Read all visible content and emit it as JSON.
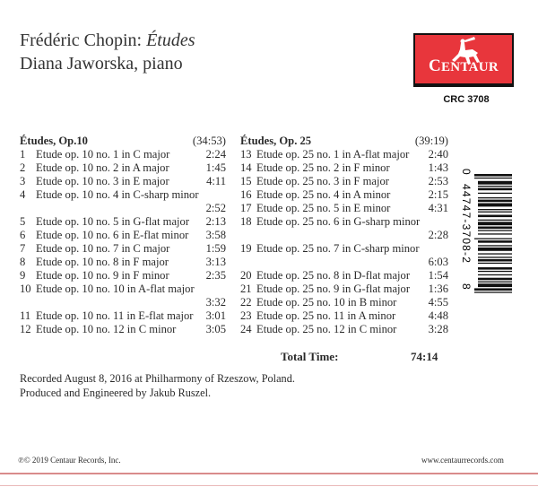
{
  "header": {
    "composer": "Frédéric Chopin:",
    "work": "Études",
    "performer": "Diana Jaworska, piano"
  },
  "label": {
    "logo_text": "CENTAUR",
    "catalog": "CRC 3708",
    "brand_color": "#e8363c"
  },
  "sections": [
    {
      "heading": "Études, Op.10",
      "duration": "(34:53)",
      "tracks": [
        {
          "num": "1",
          "title": "Etude op. 10 no. 1 in C major",
          "time": "2:24"
        },
        {
          "num": "2",
          "title": "Etude op. 10 no. 2 in A major",
          "time": "1:45"
        },
        {
          "num": "3",
          "title": "Etude op. 10 no. 3 in E major",
          "time": "4:11"
        },
        {
          "num": "4",
          "title": "Etude op. 10 no. 4 in C-sharp minor",
          "time": "2:52"
        },
        {
          "num": "5",
          "title": "Etude op. 10 no. 5 in G-flat major",
          "time": "2:13"
        },
        {
          "num": "6",
          "title": "Etude op. 10 no. 6 in E-flat minor",
          "time": "3:58"
        },
        {
          "num": "7",
          "title": "Etude op. 10 no. 7 in C major",
          "time": "1:59"
        },
        {
          "num": "8",
          "title": "Etude op. 10 no. 8 in F major",
          "time": "3:13"
        },
        {
          "num": "9",
          "title": "Etude op. 10 no. 9 in F minor",
          "time": "2:35"
        },
        {
          "num": "10",
          "title": "Etude op. 10 no. 10 in A-flat major",
          "time": "3:32"
        },
        {
          "num": "11",
          "title": "Etude op. 10 no. 11 in E-flat major",
          "time": "3:01"
        },
        {
          "num": "12",
          "title": "Etude op. 10 no. 12 in C minor",
          "time": "3:05"
        }
      ]
    },
    {
      "heading": "Études, Op. 25",
      "duration": "(39:19)",
      "tracks": [
        {
          "num": "13",
          "title": "Etude op. 25 no. 1 in A-flat major",
          "time": "2:40"
        },
        {
          "num": "14",
          "title": "Etude op. 25 no. 2 in F minor",
          "time": "1:43"
        },
        {
          "num": "15",
          "title": "Etude op. 25 no. 3 in F major",
          "time": "2:53"
        },
        {
          "num": "16",
          "title": "Etude op. 25 no. 4 in A minor",
          "time": "2:15"
        },
        {
          "num": "17",
          "title": "Etude op. 25 no. 5 in E minor",
          "time": "4:31"
        },
        {
          "num": "18",
          "title": "Etude op. 25 no. 6 in G-sharp minor",
          "time": "2:28"
        },
        {
          "num": "19",
          "title": "Etude op. 25 no. 7 in C-sharp minor",
          "time": "6:03"
        },
        {
          "num": "20",
          "title": "Etude op. 25 no. 8 in D-flat major",
          "time": "1:54"
        },
        {
          "num": "21",
          "title": "Etude op. 25 no. 9 in G-flat major",
          "time": "1:36"
        },
        {
          "num": "22",
          "title": "Etude op. 25 no. 10 in B minor",
          "time": "4:55"
        },
        {
          "num": "23",
          "title": "Etude op. 25 no. 11 in A minor",
          "time": "4:48"
        },
        {
          "num": "24",
          "title": "Etude op. 25 no. 12 in C minor",
          "time": "3:28"
        }
      ]
    }
  ],
  "total": {
    "label": "Total Time:",
    "value": "74:14"
  },
  "credits": [
    "Recorded August 8, 2016 at Philharmony of Rzeszow, Poland.",
    "Produced and Engineered by Jakub Ruszel."
  ],
  "barcode": {
    "first": "0",
    "middle": "44747-3708-2",
    "last": "8"
  },
  "footer": {
    "copyright": "℗© 2019 Centaur Records, Inc.",
    "website": "www.centaurrecords.com"
  }
}
